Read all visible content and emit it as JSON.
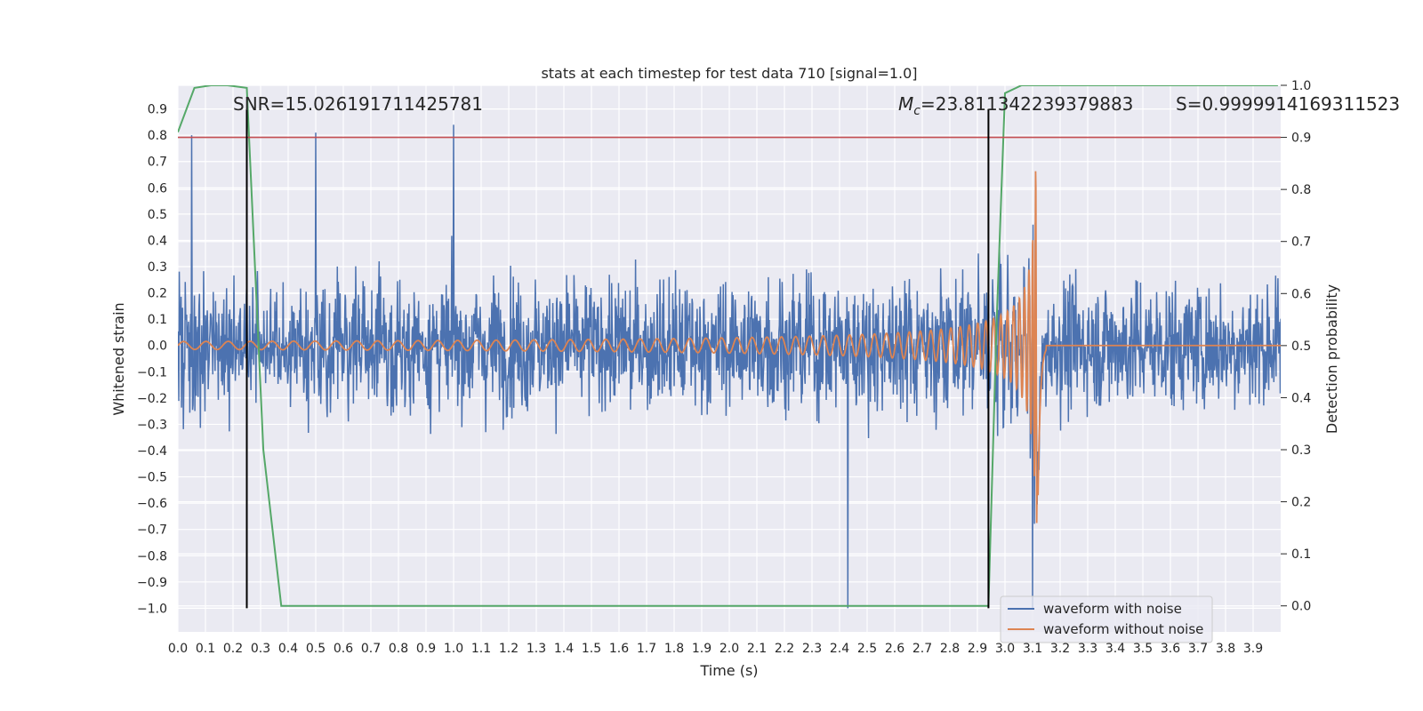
{
  "chart_data": {
    "type": "line",
    "title": "stats at each timestep for test data 710 [signal=1.0]",
    "xlabel": "Time (s)",
    "ylabel_left": "Whitened strain",
    "ylabel_right": "Detection probability",
    "xlim": [
      0.0,
      4.0
    ],
    "ylim_left": [
      -1.09,
      0.99
    ],
    "ylim_right": [
      -0.05,
      1.0
    ],
    "x_ticks": [
      "0.0",
      "0.1",
      "0.2",
      "0.3",
      "0.4",
      "0.5",
      "0.6",
      "0.7",
      "0.8",
      "0.9",
      "1.0",
      "1.1",
      "1.2",
      "1.3",
      "1.4",
      "1.5",
      "1.6",
      "1.7",
      "1.8",
      "1.9",
      "2.0",
      "2.1",
      "2.2",
      "2.3",
      "2.4",
      "2.5",
      "2.6",
      "2.7",
      "2.8",
      "2.9",
      "3.0",
      "3.1",
      "3.2",
      "3.3",
      "3.4",
      "3.5",
      "3.6",
      "3.7",
      "3.8",
      "3.9"
    ],
    "y_ticks_left": [
      "0.9",
      "0.8",
      "0.7",
      "0.6",
      "0.5",
      "0.4",
      "0.3",
      "0.2",
      "0.1",
      "0.0",
      "−0.1",
      "−0.2",
      "−0.3",
      "−0.4",
      "−0.5",
      "−0.6",
      "−0.7",
      "−0.8",
      "−0.9",
      "−1.0"
    ],
    "y_ticks_right": [
      "1.0",
      "0.9",
      "0.8",
      "0.7",
      "0.6",
      "0.5",
      "0.4",
      "0.3",
      "0.2",
      "0.1",
      "0.0"
    ],
    "grid": true,
    "legend_position": "bottom-right",
    "annotations": {
      "snr": "SNR=15.026191711425781",
      "mc_symbol": "M",
      "mc_sub": "c",
      "mc_value": "=23.811342239379883",
      "s": "S=0.9999914169311523"
    },
    "series": [
      {
        "name": "waveform with noise",
        "color": "#4c72b0",
        "axis": "left",
        "description_stats": {
          "typical_amplitude": 0.35,
          "max": 0.84,
          "min": -1.0,
          "spike_times": [
            0.05,
            0.5,
            1.0,
            2.43,
            3.1
          ]
        }
      },
      {
        "name": "waveform without noise",
        "color": "#dd8452",
        "axis": "left",
        "chirp": {
          "start": 0.0,
          "merger": 3.12,
          "start_amplitude": 0.015,
          "peak_amplitude": 0.75,
          "trough": -0.62
        }
      },
      {
        "axis": "right",
        "color": "#55a868",
        "x": [
          0.0,
          0.06,
          0.12,
          0.18,
          0.25,
          0.31,
          0.375,
          2.94,
          2.97,
          3.0,
          3.06,
          3.12,
          3.5,
          3.99
        ],
        "values": [
          0.91,
          0.995,
          1.0,
          1.0,
          0.995,
          0.3,
          0.0,
          0.0,
          0.55,
          0.985,
          1.0,
          1.0,
          1.0,
          1.0
        ]
      }
    ],
    "hlines": [
      {
        "axis": "right",
        "value": 0.9,
        "color": "#c44e52"
      }
    ],
    "vlines": [
      {
        "x": 0.25,
        "y0_left": -1.0,
        "y1_left": 0.9,
        "color": "#000000"
      },
      {
        "x": 2.94,
        "y0_left": -1.0,
        "y1_left": 0.9,
        "color": "#000000"
      }
    ]
  }
}
